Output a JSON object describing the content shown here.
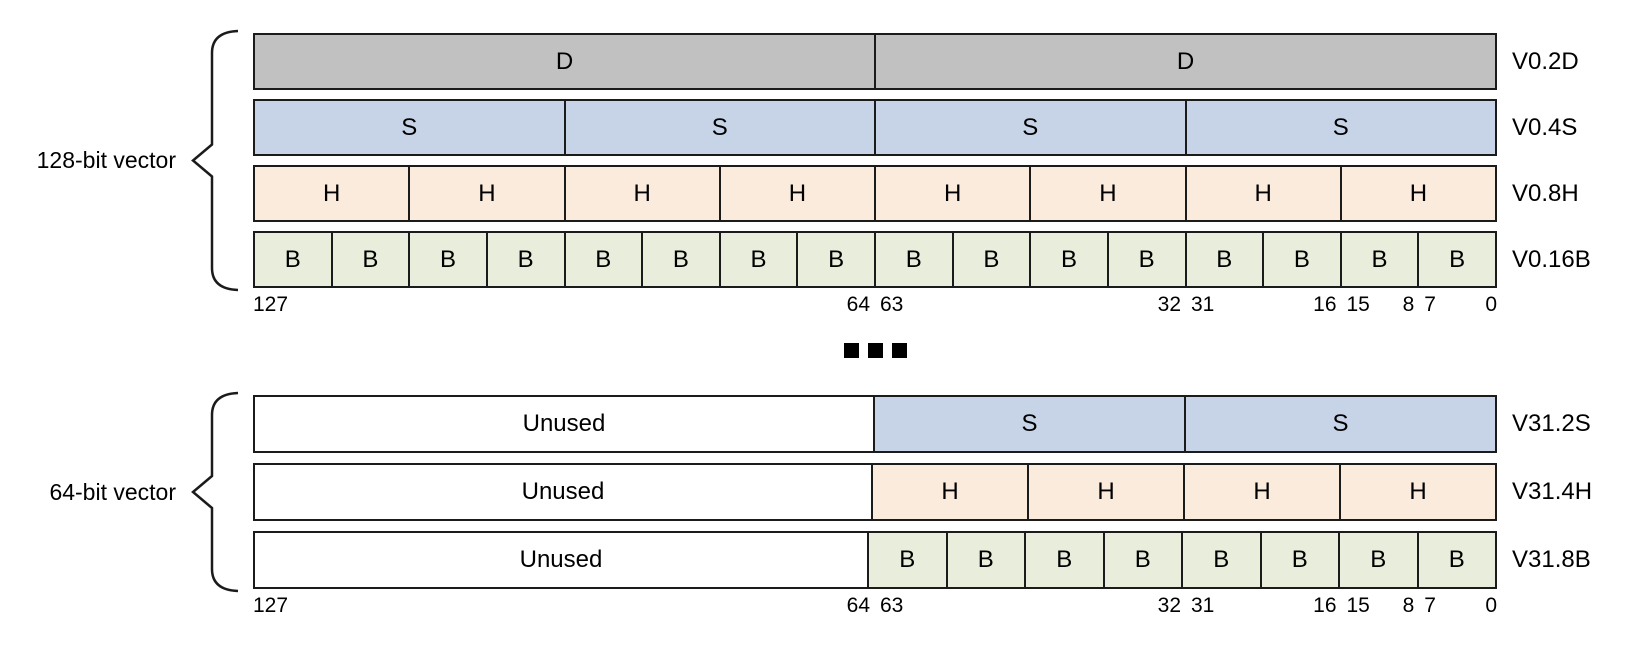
{
  "palette": {
    "gray": "#c1c1c1",
    "blue": "#c7d3e7",
    "peach": "#faebdc",
    "green": "#e8eedb",
    "white": "#ffffff",
    "border": "#1b1b1b"
  },
  "blocks": [
    {
      "id": "128-bit-vector",
      "brace_label": "128-bit vector",
      "rows": [
        {
          "register": "V0.2D",
          "cells": [
            {
              "label": "D",
              "span": 64,
              "color": "gray"
            },
            {
              "label": "D",
              "span": 64,
              "color": "gray"
            }
          ]
        },
        {
          "register": "V0.4S",
          "cells": [
            {
              "label": "S",
              "span": 32,
              "color": "blue"
            },
            {
              "label": "S",
              "span": 32,
              "color": "blue"
            },
            {
              "label": "S",
              "span": 32,
              "color": "blue"
            },
            {
              "label": "S",
              "span": 32,
              "color": "blue"
            }
          ]
        },
        {
          "register": "V0.8H",
          "cells": [
            {
              "label": "H",
              "span": 16,
              "color": "peach"
            },
            {
              "label": "H",
              "span": 16,
              "color": "peach"
            },
            {
              "label": "H",
              "span": 16,
              "color": "peach"
            },
            {
              "label": "H",
              "span": 16,
              "color": "peach"
            },
            {
              "label": "H",
              "span": 16,
              "color": "peach"
            },
            {
              "label": "H",
              "span": 16,
              "color": "peach"
            },
            {
              "label": "H",
              "span": 16,
              "color": "peach"
            },
            {
              "label": "H",
              "span": 16,
              "color": "peach"
            }
          ]
        },
        {
          "register": "V0.16B",
          "cells": [
            {
              "label": "B",
              "span": 8,
              "color": "green"
            },
            {
              "label": "B",
              "span": 8,
              "color": "green"
            },
            {
              "label": "B",
              "span": 8,
              "color": "green"
            },
            {
              "label": "B",
              "span": 8,
              "color": "green"
            },
            {
              "label": "B",
              "span": 8,
              "color": "green"
            },
            {
              "label": "B",
              "span": 8,
              "color": "green"
            },
            {
              "label": "B",
              "span": 8,
              "color": "green"
            },
            {
              "label": "B",
              "span": 8,
              "color": "green"
            },
            {
              "label": "B",
              "span": 8,
              "color": "green"
            },
            {
              "label": "B",
              "span": 8,
              "color": "green"
            },
            {
              "label": "B",
              "span": 8,
              "color": "green"
            },
            {
              "label": "B",
              "span": 8,
              "color": "green"
            },
            {
              "label": "B",
              "span": 8,
              "color": "green"
            },
            {
              "label": "B",
              "span": 8,
              "color": "green"
            },
            {
              "label": "B",
              "span": 8,
              "color": "green"
            },
            {
              "label": "B",
              "span": 8,
              "color": "green"
            }
          ]
        }
      ],
      "bit_labels": [
        {
          "text": "127",
          "at": 0,
          "side": "edge-left"
        },
        {
          "text": "64",
          "at": 50,
          "side": "before"
        },
        {
          "text": "63",
          "at": 50,
          "side": "after"
        },
        {
          "text": "32",
          "at": 75,
          "side": "before"
        },
        {
          "text": "31",
          "at": 75,
          "side": "after"
        },
        {
          "text": "16",
          "at": 87.5,
          "side": "before"
        },
        {
          "text": "15",
          "at": 87.5,
          "side": "after"
        },
        {
          "text": "8",
          "at": 93.75,
          "side": "before"
        },
        {
          "text": "7",
          "at": 93.75,
          "side": "after"
        },
        {
          "text": "0",
          "at": 100,
          "side": "edge-right"
        }
      ]
    },
    {
      "id": "64-bit-vector",
      "brace_label": "64-bit vector",
      "rows": [
        {
          "register": "V31.2S",
          "cells": [
            {
              "label": "Unused",
              "span": 64,
              "color": "white"
            },
            {
              "label": "S",
              "span": 32,
              "color": "blue"
            },
            {
              "label": "S",
              "span": 32,
              "color": "blue"
            }
          ]
        },
        {
          "register": "V31.4H",
          "cells": [
            {
              "label": "Unused",
              "span": 64,
              "color": "white"
            },
            {
              "label": "H",
              "span": 16,
              "color": "peach"
            },
            {
              "label": "H",
              "span": 16,
              "color": "peach"
            },
            {
              "label": "H",
              "span": 16,
              "color": "peach"
            },
            {
              "label": "H",
              "span": 16,
              "color": "peach"
            }
          ]
        },
        {
          "register": "V31.8B",
          "cells": [
            {
              "label": "Unused",
              "span": 64,
              "color": "white"
            },
            {
              "label": "B",
              "span": 8,
              "color": "green"
            },
            {
              "label": "B",
              "span": 8,
              "color": "green"
            },
            {
              "label": "B",
              "span": 8,
              "color": "green"
            },
            {
              "label": "B",
              "span": 8,
              "color": "green"
            },
            {
              "label": "B",
              "span": 8,
              "color": "green"
            },
            {
              "label": "B",
              "span": 8,
              "color": "green"
            },
            {
              "label": "B",
              "span": 8,
              "color": "green"
            },
            {
              "label": "B",
              "span": 8,
              "color": "green"
            }
          ]
        }
      ],
      "bit_labels": [
        {
          "text": "127",
          "at": 0,
          "side": "edge-left"
        },
        {
          "text": "64",
          "at": 50,
          "side": "before"
        },
        {
          "text": "63",
          "at": 50,
          "side": "after"
        },
        {
          "text": "32",
          "at": 75,
          "side": "before"
        },
        {
          "text": "31",
          "at": 75,
          "side": "after"
        },
        {
          "text": "16",
          "at": 87.5,
          "side": "before"
        },
        {
          "text": "15",
          "at": 87.5,
          "side": "after"
        },
        {
          "text": "8",
          "at": 93.75,
          "side": "before"
        },
        {
          "text": "7",
          "at": 93.75,
          "side": "after"
        },
        {
          "text": "0",
          "at": 100,
          "side": "edge-right"
        }
      ]
    }
  ],
  "separator": {
    "count": 3
  }
}
